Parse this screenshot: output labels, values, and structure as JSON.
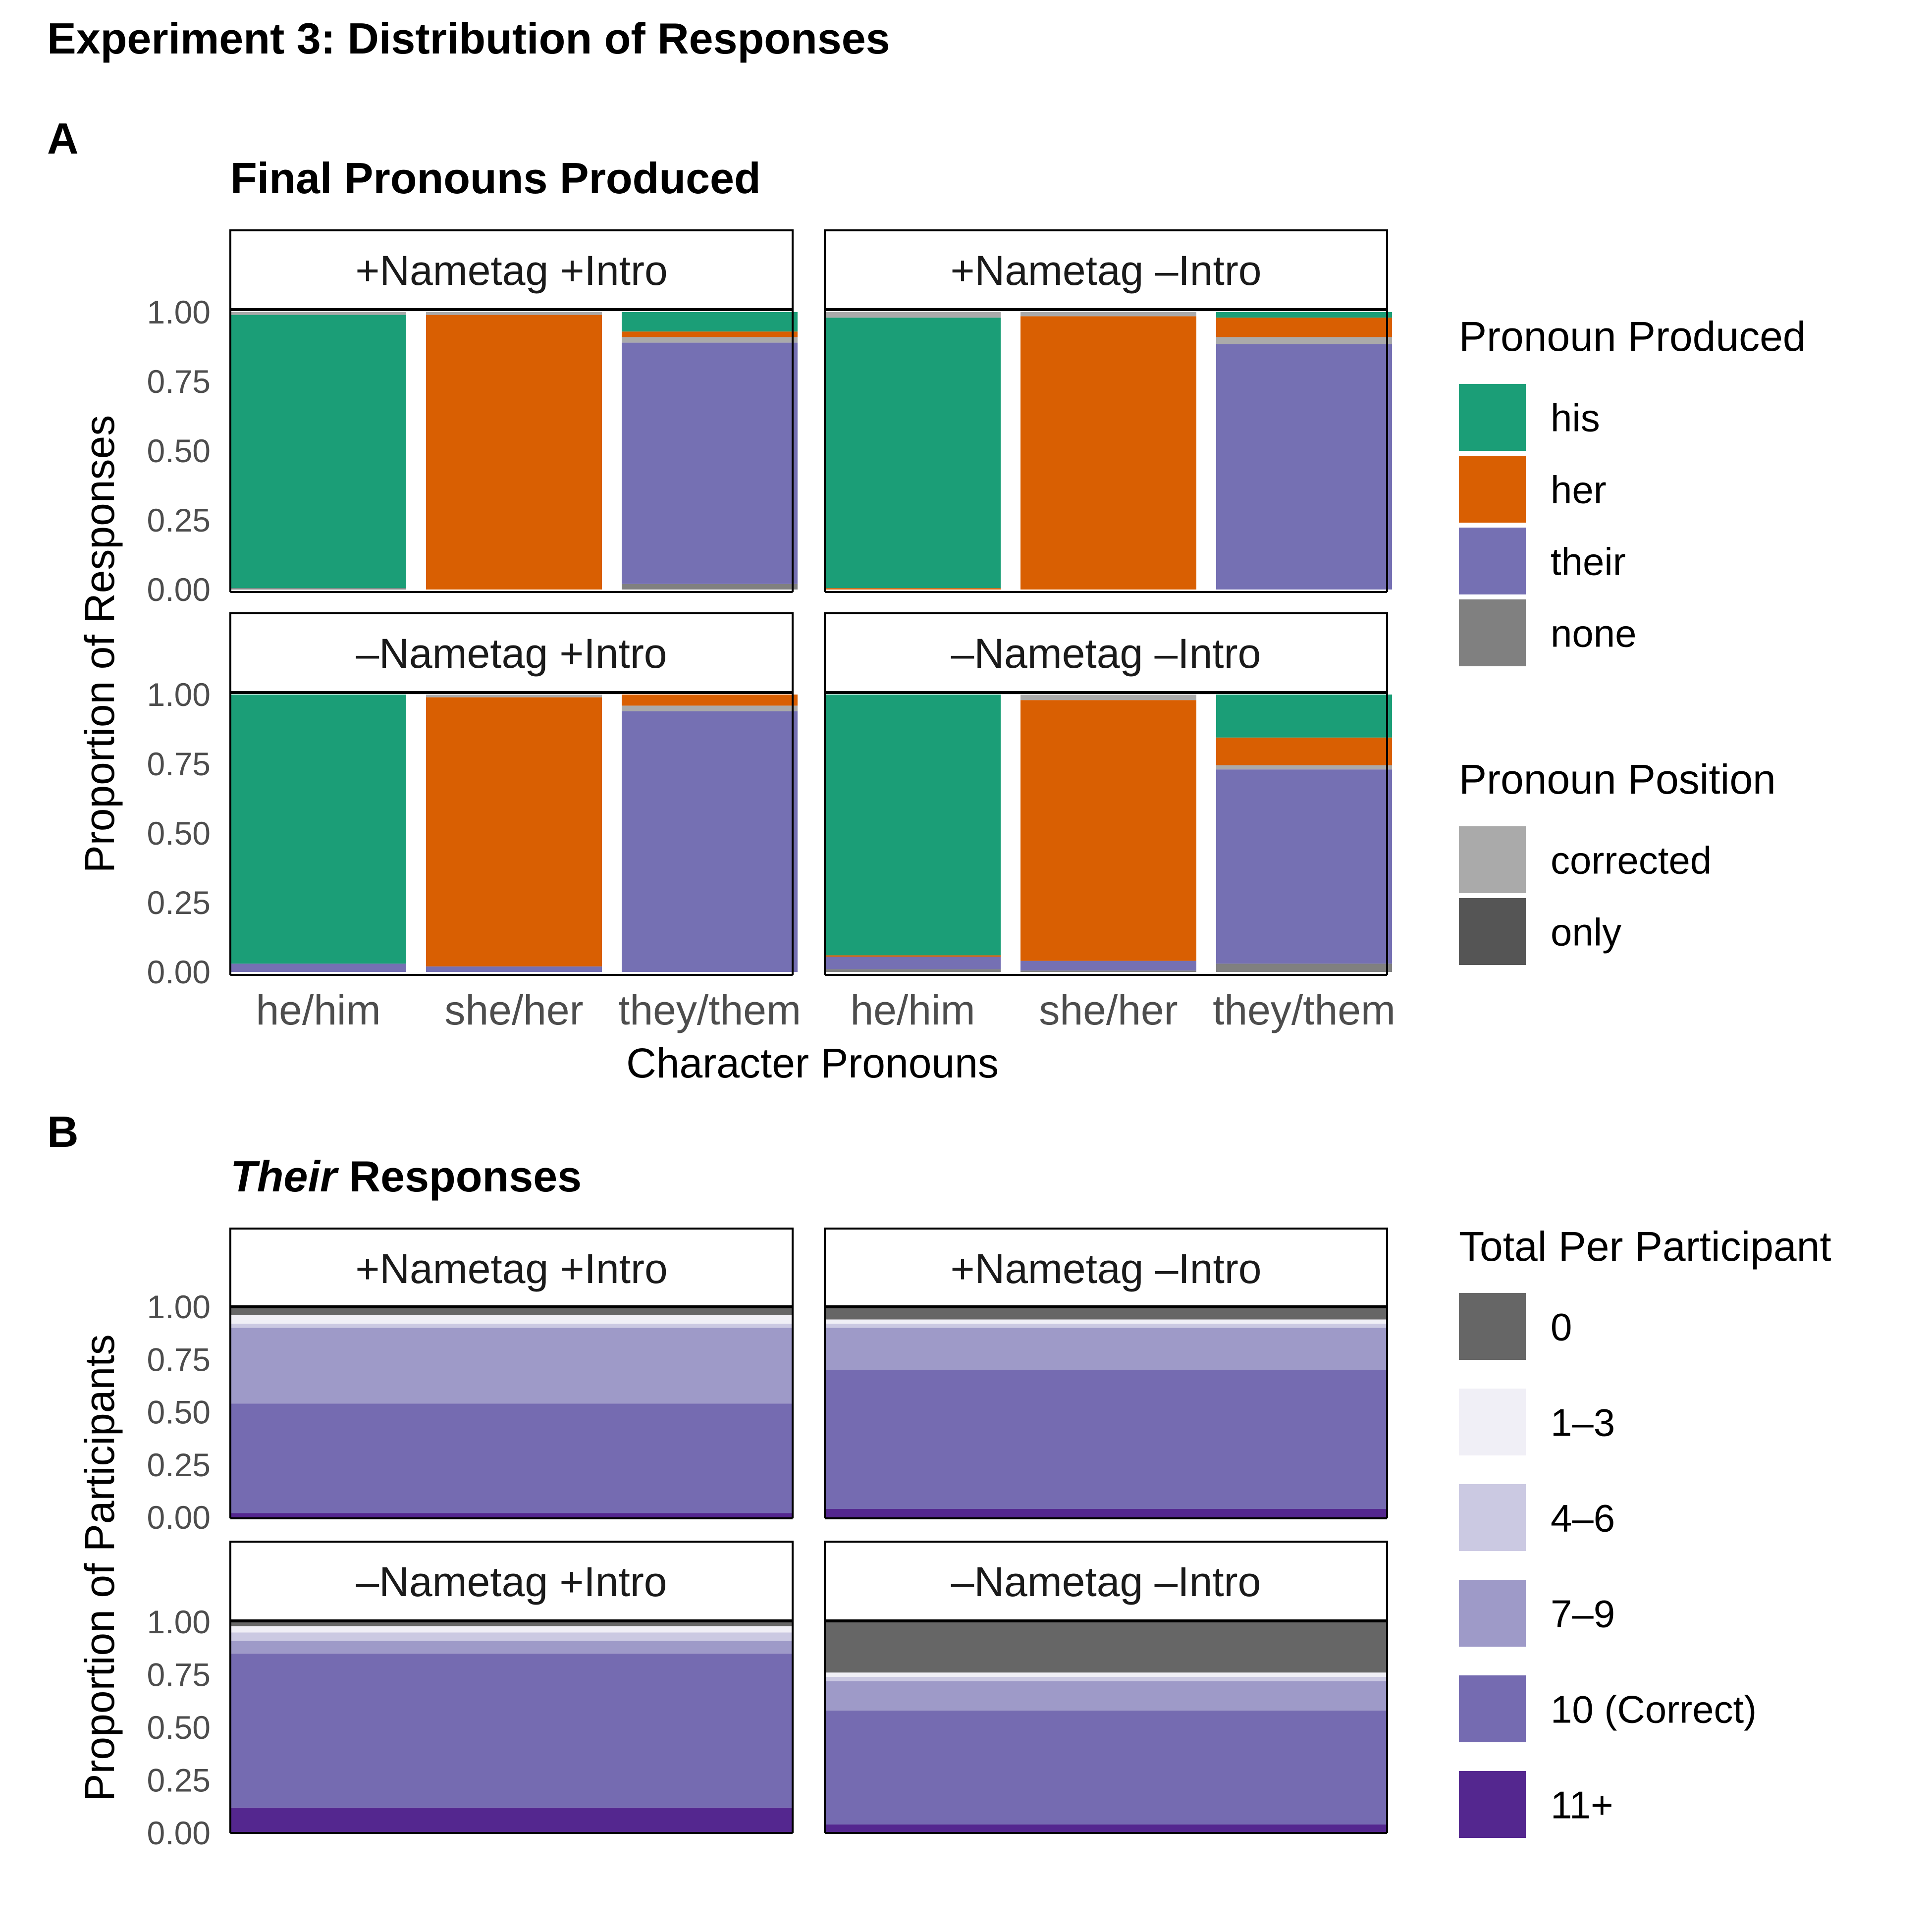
{
  "figure": {
    "title": "Experiment 3: Distribution of Responses"
  },
  "colors": {
    "his": "#1b9e77",
    "her": "#d95f02",
    "their": "#7570b3",
    "none": "#808080",
    "corrected": "#aaaaaa",
    "only": "#555555",
    "t0": "#666666",
    "t1_3": "#f0eff6",
    "t4_6": "#cbc9e2",
    "t7_9": "#9e9ac8",
    "t10": "#756bb1",
    "t11": "#54278f"
  },
  "panelA": {
    "letter": "A",
    "title": "Final Pronouns Produced",
    "ylabel": "Proportion of Responses",
    "xlabel": "Character Pronouns",
    "legend_produced": {
      "title": "Pronoun Produced",
      "items": [
        "his",
        "her",
        "their",
        "none"
      ]
    },
    "legend_position": {
      "title": "Pronoun Position",
      "items": [
        "corrected",
        "only"
      ]
    }
  },
  "panelB": {
    "letter": "B",
    "title_italic": "Their",
    "title_rest": " Responses",
    "ylabel": "Proportion of Participants",
    "legend": {
      "title": "Total Per Participant",
      "items": [
        "0",
        "1–3",
        "4–6",
        "7–9",
        "10 (Correct)",
        "11+"
      ]
    }
  },
  "chart_data": [
    {
      "type": "bar",
      "title": "Final Pronouns Produced",
      "xlabel": "Character Pronouns",
      "ylabel": "Proportion of Responses",
      "ylim": [
        0,
        1
      ],
      "yticks": [
        "0.00",
        "0.25",
        "0.50",
        "0.75",
        "1.00"
      ],
      "categories": [
        "he/him",
        "she/her",
        "they/them"
      ],
      "legend": "right",
      "facets": [
        {
          "label": "+Nametag +Intro",
          "bars": [
            {
              "category": "he/him",
              "segments": [
                {
                  "key": "none",
                  "position": "only",
                  "value": 0.005
                },
                {
                  "key": "his",
                  "position": "only",
                  "value": 0.985
                },
                {
                  "key": "his",
                  "position": "corrected",
                  "value": 0.01
                }
              ]
            },
            {
              "category": "she/her",
              "segments": [
                {
                  "key": "her",
                  "position": "only",
                  "value": 0.99
                },
                {
                  "key": "her",
                  "position": "corrected",
                  "value": 0.01
                }
              ]
            },
            {
              "category": "they/them",
              "segments": [
                {
                  "key": "none",
                  "position": "only",
                  "value": 0.02
                },
                {
                  "key": "their",
                  "position": "only",
                  "value": 0.87
                },
                {
                  "key": "their",
                  "position": "corrected",
                  "value": 0.02
                },
                {
                  "key": "her",
                  "position": "only",
                  "value": 0.02
                },
                {
                  "key": "his",
                  "position": "only",
                  "value": 0.07
                }
              ]
            }
          ]
        },
        {
          "label": "+Nametag –Intro",
          "bars": [
            {
              "category": "he/him",
              "segments": [
                {
                  "key": "her",
                  "position": "only",
                  "value": 0.005
                },
                {
                  "key": "his",
                  "position": "only",
                  "value": 0.975
                },
                {
                  "key": "his",
                  "position": "corrected",
                  "value": 0.02
                }
              ]
            },
            {
              "category": "she/her",
              "segments": [
                {
                  "key": "her",
                  "position": "only",
                  "value": 0.985
                },
                {
                  "key": "her",
                  "position": "corrected",
                  "value": 0.015
                }
              ]
            },
            {
              "category": "they/them",
              "segments": [
                {
                  "key": "their",
                  "position": "only",
                  "value": 0.885
                },
                {
                  "key": "their",
                  "position": "corrected",
                  "value": 0.025
                },
                {
                  "key": "her",
                  "position": "only",
                  "value": 0.07
                },
                {
                  "key": "his",
                  "position": "only",
                  "value": 0.02
                }
              ]
            }
          ]
        },
        {
          "label": "–Nametag +Intro",
          "bars": [
            {
              "category": "he/him",
              "segments": [
                {
                  "key": "their",
                  "position": "only",
                  "value": 0.03
                },
                {
                  "key": "his",
                  "position": "only",
                  "value": 0.97
                }
              ]
            },
            {
              "category": "she/her",
              "segments": [
                {
                  "key": "their",
                  "position": "only",
                  "value": 0.02
                },
                {
                  "key": "her",
                  "position": "only",
                  "value": 0.97
                },
                {
                  "key": "her",
                  "position": "corrected",
                  "value": 0.01
                }
              ]
            },
            {
              "category": "they/them",
              "segments": [
                {
                  "key": "their",
                  "position": "only",
                  "value": 0.94
                },
                {
                  "key": "their",
                  "position": "corrected",
                  "value": 0.02
                },
                {
                  "key": "her",
                  "position": "only",
                  "value": 0.04
                }
              ]
            }
          ]
        },
        {
          "label": "–Nametag –Intro",
          "bars": [
            {
              "category": "he/him",
              "segments": [
                {
                  "key": "none",
                  "position": "only",
                  "value": 0.01
                },
                {
                  "key": "their",
                  "position": "only",
                  "value": 0.045
                },
                {
                  "key": "her",
                  "position": "only",
                  "value": 0.005
                },
                {
                  "key": "his",
                  "position": "only",
                  "value": 0.94
                }
              ]
            },
            {
              "category": "she/her",
              "segments": [
                {
                  "key": "none",
                  "position": "only",
                  "value": 0.005
                },
                {
                  "key": "their",
                  "position": "only",
                  "value": 0.035
                },
                {
                  "key": "her",
                  "position": "only",
                  "value": 0.94
                },
                {
                  "key": "her",
                  "position": "corrected",
                  "value": 0.02
                }
              ]
            },
            {
              "category": "they/them",
              "segments": [
                {
                  "key": "none",
                  "position": "only",
                  "value": 0.03
                },
                {
                  "key": "their",
                  "position": "only",
                  "value": 0.7
                },
                {
                  "key": "their",
                  "position": "corrected",
                  "value": 0.015
                },
                {
                  "key": "her",
                  "position": "only",
                  "value": 0.1
                },
                {
                  "key": "his",
                  "position": "only",
                  "value": 0.155
                }
              ]
            }
          ]
        }
      ]
    },
    {
      "type": "bar",
      "title": "Their Responses",
      "ylabel": "Proportion of Participants",
      "ylim": [
        0,
        1
      ],
      "yticks": [
        "0.00",
        "0.25",
        "0.50",
        "0.75",
        "1.00"
      ],
      "legend": "right",
      "facets": [
        {
          "label": "+Nametag +Intro",
          "segments": [
            {
              "key": "11+",
              "value": 0.02
            },
            {
              "key": "10 (Correct)",
              "value": 0.52
            },
            {
              "key": "7–9",
              "value": 0.36
            },
            {
              "key": "4–6",
              "value": 0.02
            },
            {
              "key": "1–3",
              "value": 0.04
            },
            {
              "key": "0",
              "value": 0.04
            }
          ]
        },
        {
          "label": "+Nametag –Intro",
          "segments": [
            {
              "key": "11+",
              "value": 0.04
            },
            {
              "key": "10 (Correct)",
              "value": 0.66
            },
            {
              "key": "7–9",
              "value": 0.2
            },
            {
              "key": "4–6",
              "value": 0.02
            },
            {
              "key": "1–3",
              "value": 0.02
            },
            {
              "key": "0",
              "value": 0.06
            }
          ]
        },
        {
          "label": "–Nametag +Intro",
          "segments": [
            {
              "key": "11+",
              "value": 0.12
            },
            {
              "key": "10 (Correct)",
              "value": 0.73
            },
            {
              "key": "7–9",
              "value": 0.06
            },
            {
              "key": "4–6",
              "value": 0.04
            },
            {
              "key": "1–3",
              "value": 0.03
            },
            {
              "key": "0",
              "value": 0.02
            }
          ]
        },
        {
          "label": "–Nametag –Intro",
          "segments": [
            {
              "key": "11+",
              "value": 0.04
            },
            {
              "key": "10 (Correct)",
              "value": 0.54
            },
            {
              "key": "7–9",
              "value": 0.14
            },
            {
              "key": "4–6",
              "value": 0.02
            },
            {
              "key": "1–3",
              "value": 0.02
            },
            {
              "key": "0",
              "value": 0.24
            }
          ]
        }
      ]
    }
  ]
}
